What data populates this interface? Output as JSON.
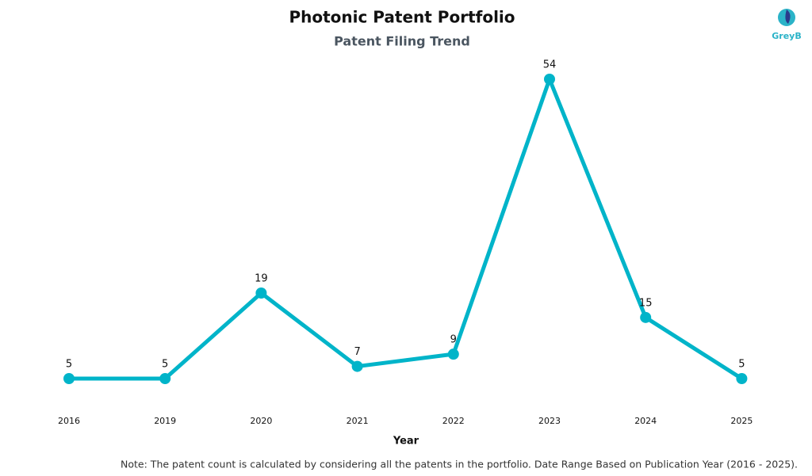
{
  "chart_data": {
    "type": "line",
    "title": "Photonic Patent Portfolio",
    "subtitle": "Patent Filing Trend",
    "x_label": "Year",
    "categories": [
      "2016",
      "2019",
      "2020",
      "2021",
      "2022",
      "2023",
      "2024",
      "2025"
    ],
    "values": [
      5,
      5,
      19,
      7,
      9,
      54,
      15,
      5
    ],
    "color": "#00b4c9",
    "note": "Note: The patent count is calculated by considering all the patents in the portfolio. Date Range Based on Publication Year (2016 - 2025).",
    "logo": "GreyB"
  }
}
